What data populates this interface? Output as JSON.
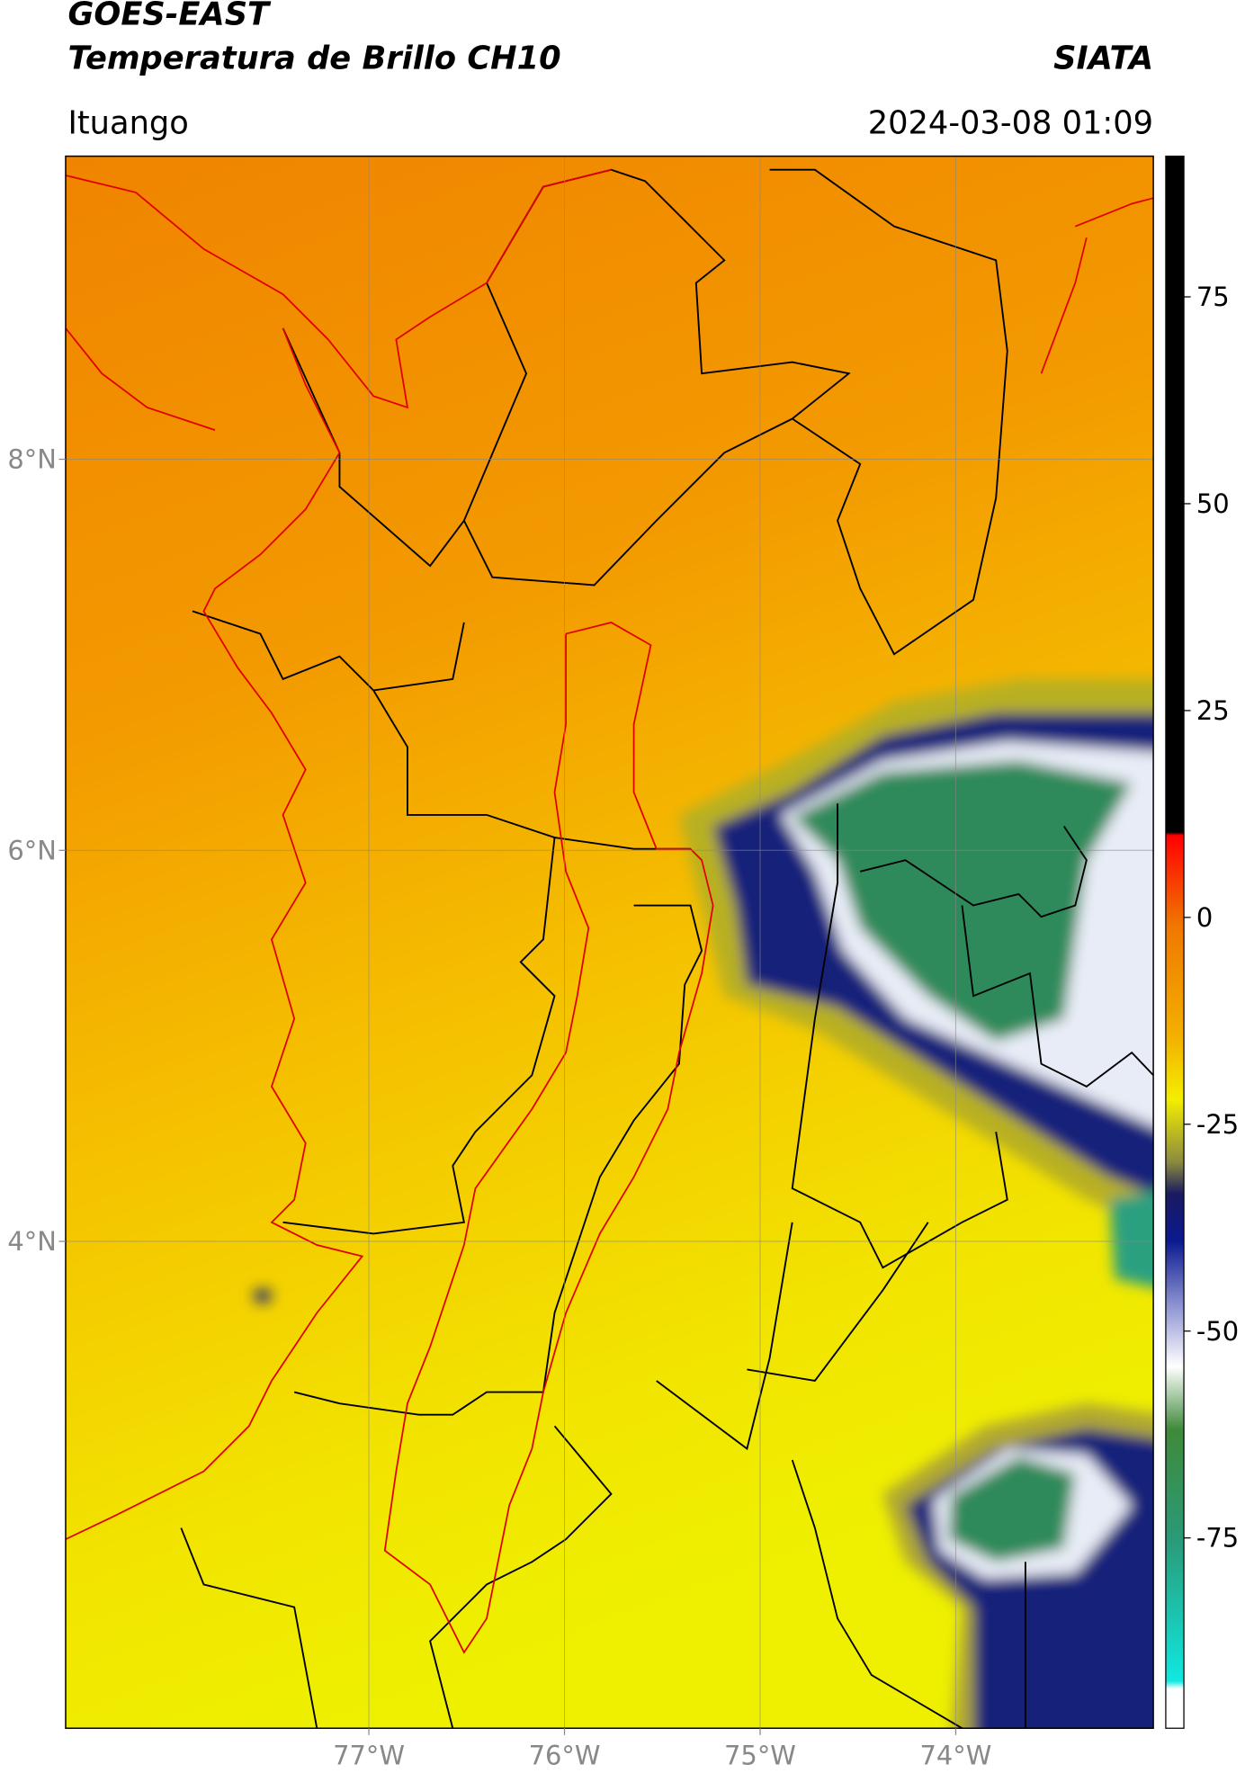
{
  "chart_data": {
    "type": "map",
    "title": "GOES-EAST",
    "subtitle": "Temperatura de Brillo CH10",
    "source": "SIATA",
    "location": "Ituango",
    "datetime": "2024-03-08 01:09",
    "xlim": [
      -78.55,
      -72.99
    ],
    "ylim": [
      1.51,
      9.55
    ],
    "xticks": [
      {
        "value": -77,
        "label": "77°W"
      },
      {
        "value": -76,
        "label": "76°W"
      },
      {
        "value": -75,
        "label": "75°W"
      },
      {
        "value": -74,
        "label": "74°W"
      }
    ],
    "yticks": [
      {
        "value": 8,
        "label": "8°N"
      },
      {
        "value": 6,
        "label": "6°N"
      },
      {
        "value": 4,
        "label": "4°N"
      }
    ],
    "grid": true,
    "colorbar": {
      "clim": [
        -98,
        92
      ],
      "ticks": [
        75,
        50,
        25,
        0,
        -25,
        -50,
        -75
      ]
    }
  }
}
